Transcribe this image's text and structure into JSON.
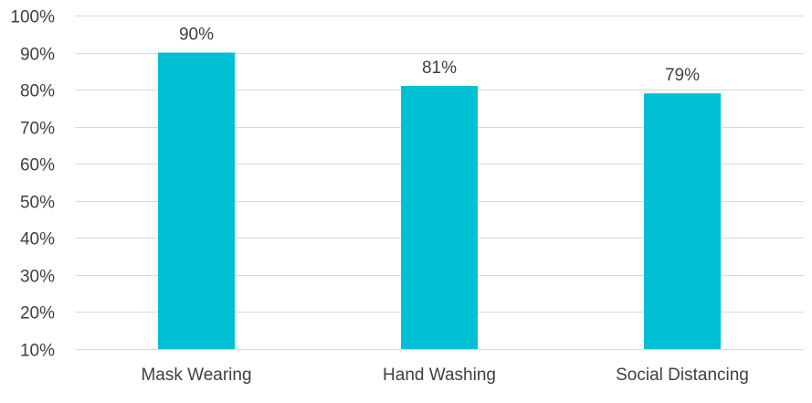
{
  "chart_data": {
    "type": "bar",
    "title": "",
    "xlabel": "",
    "ylabel": "",
    "categories": [
      "Mask Wearing",
      "Hand Washing",
      "Social Distancing"
    ],
    "values": [
      90,
      81,
      79
    ],
    "data_labels": [
      "90%",
      "81%",
      "79%"
    ],
    "ylim": [
      10,
      100
    ],
    "yticks": [
      10,
      20,
      30,
      40,
      50,
      60,
      70,
      80,
      90,
      100
    ],
    "ytick_labels": [
      "10%",
      "20%",
      "30%",
      "40%",
      "50%",
      "60%",
      "70%",
      "80%",
      "90%",
      "100%"
    ],
    "grid": true,
    "legend": "none",
    "bar_color": "#00C0D4"
  }
}
